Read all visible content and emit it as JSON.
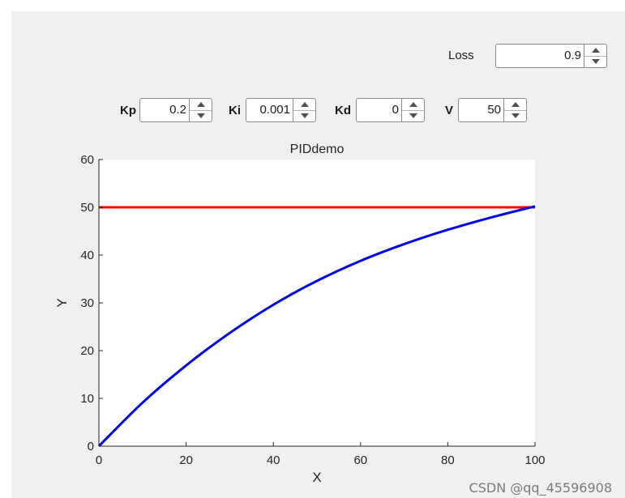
{
  "controls": {
    "loss": {
      "label": "Loss",
      "value": "0.9"
    },
    "kp": {
      "label": "Kp",
      "value": "0.2"
    },
    "ki": {
      "label": "Ki",
      "value": "0.001"
    },
    "kd": {
      "label": "Kd",
      "value": "0"
    },
    "v": {
      "label": "V",
      "value": "50"
    }
  },
  "watermark": "CSDN @qq_45596908",
  "colors": {
    "setpoint": "#ff0000",
    "response": "#0000ff"
  },
  "chart_data": {
    "type": "line",
    "title": "PIDdemo",
    "xlabel": "X",
    "ylabel": "Y",
    "xlim": [
      0,
      100
    ],
    "ylim": [
      0,
      60
    ],
    "xticks": [
      0,
      20,
      40,
      60,
      80,
      100
    ],
    "yticks": [
      0,
      10,
      20,
      30,
      40,
      50,
      60
    ],
    "grid": false,
    "x": [
      0,
      10,
      20,
      30,
      40,
      50,
      60,
      70,
      80,
      90,
      100
    ],
    "series": [
      {
        "values": [
          50,
          50,
          50,
          50,
          50,
          50,
          50,
          50,
          50,
          50,
          50
        ],
        "color": "#ff0000"
      },
      {
        "values": [
          0,
          9.1,
          16.9,
          23.7,
          29.6,
          34.6,
          38.8,
          42.3,
          45.3,
          47.9,
          50.2
        ],
        "color": "#0000ff"
      }
    ]
  }
}
